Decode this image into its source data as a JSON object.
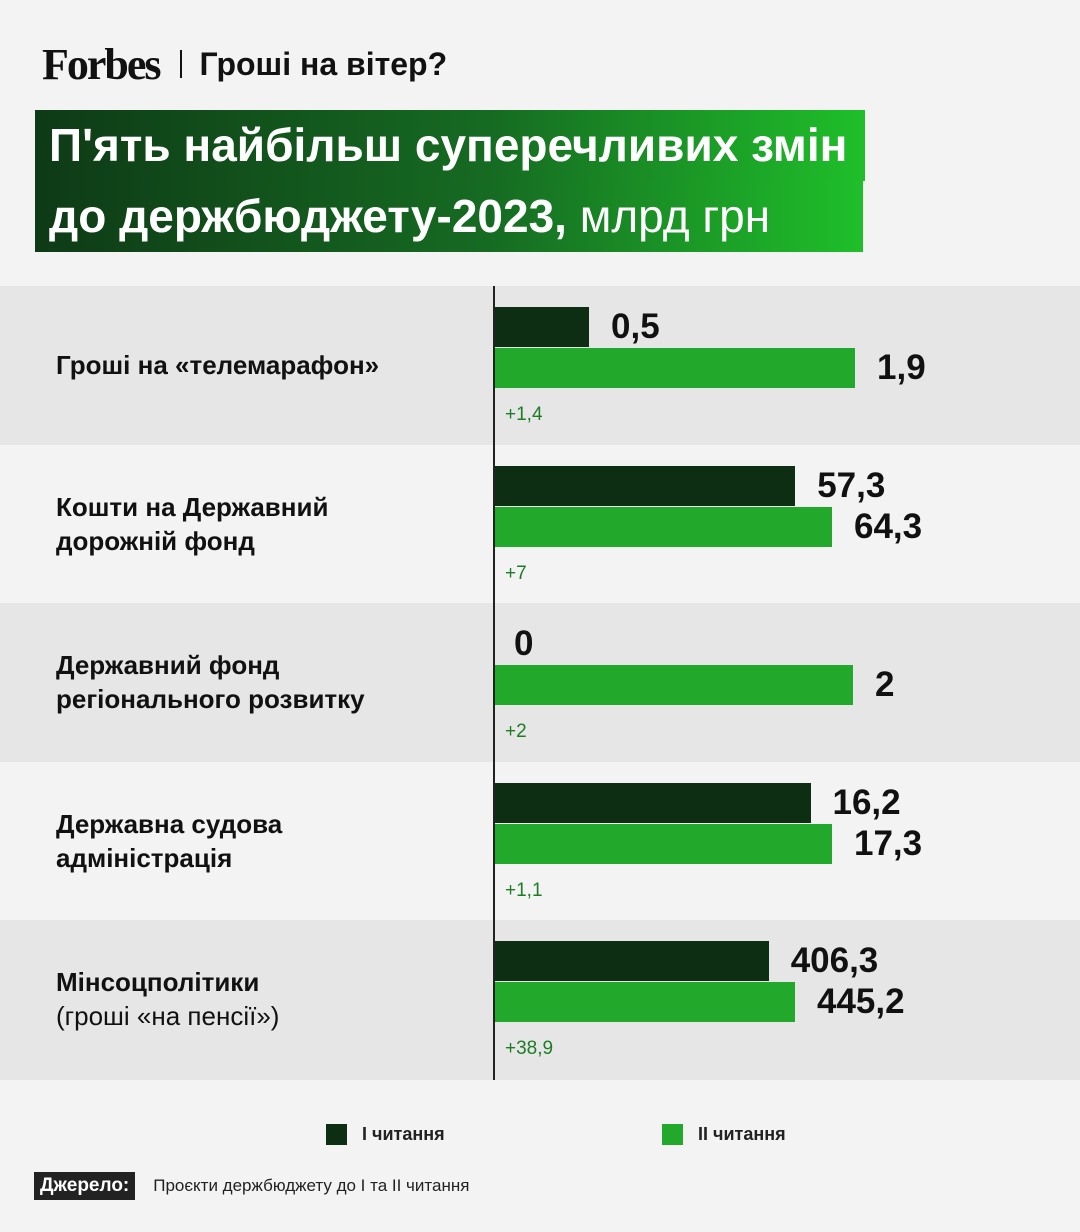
{
  "header": {
    "logo": "Forbes",
    "rubric": "Гроші на вітер?"
  },
  "title": {
    "line1": "П'ять найбільш суперечливих змін",
    "line2": "до держбюджету-2023,",
    "unit": " млрд грн"
  },
  "colors": {
    "reading1": "#0d2e12",
    "reading2": "#22a82b",
    "delta": "#1d7d24"
  },
  "legend": {
    "reading1": "I читання",
    "reading2": "II читання"
  },
  "source": {
    "label": "Джерело:",
    "text": "Проєкти держбюджету до I та II читання"
  },
  "chart_data": {
    "type": "bar",
    "orientation": "horizontal",
    "categories": [
      {
        "label": "Гроші на «телемарафон»",
        "sub": ""
      },
      {
        "label": "Кошти на Державний дорожній фонд",
        "sub": ""
      },
      {
        "label": "Державний фонд регіонального розвитку",
        "sub": ""
      },
      {
        "label": "Державна судова адміністрація",
        "sub": ""
      },
      {
        "label": "Мінсоцполітики",
        "sub": "(гроші «на пенсії»)"
      }
    ],
    "series": [
      {
        "name": "I читання",
        "values": [
          0.5,
          57.3,
          0,
          16.2,
          406.3
        ],
        "labels": [
          "0,5",
          "57,3",
          "0",
          "16,2",
          "406,3"
        ]
      },
      {
        "name": "II читання",
        "values": [
          1.9,
          64.3,
          2,
          17.3,
          445.2
        ],
        "labels": [
          "1,9",
          "64,3",
          "2",
          "17,3",
          "445,2"
        ]
      }
    ],
    "deltas": [
      "+1,4",
      "+7",
      "+2",
      "+1,1",
      "+38,9"
    ],
    "grid": false,
    "legend_position": "bottom"
  }
}
